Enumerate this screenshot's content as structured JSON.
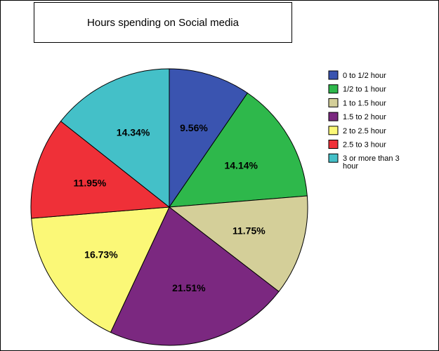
{
  "chart_data": {
    "type": "pie",
    "title": "Hours spending on Social media",
    "categories": [
      "0 to 1/2 hour",
      "1/2 to 1 hour",
      "1 to 1.5 hour",
      "1.5 to 2 hour",
      "2 to 2.5 hour",
      "2.5 to 3 hour",
      "3 or more than 3 hour"
    ],
    "values": [
      9.56,
      14.14,
      11.75,
      21.51,
      16.73,
      11.95,
      14.34
    ],
    "labels": [
      "9.56%",
      "14.14%",
      "11.75%",
      "21.51%",
      "16.73%",
      "11.95%",
      "14.34%"
    ],
    "colors": [
      "#3a54b0",
      "#2eb84b",
      "#d4cf99",
      "#7b2880",
      "#fbf877",
      "#ef3038",
      "#44c0c8"
    ],
    "legend_position": "right",
    "legend_lines": [
      [
        "0 to 1/2 hour"
      ],
      [
        "1/2 to 1 hour"
      ],
      [
        "1 to 1.5 hour"
      ],
      [
        "1.5 to 2 hour"
      ],
      [
        "2 to 2.5 hour"
      ],
      [
        "2.5 to 3 hour"
      ],
      [
        "3 or more than 3",
        "hour"
      ]
    ]
  }
}
